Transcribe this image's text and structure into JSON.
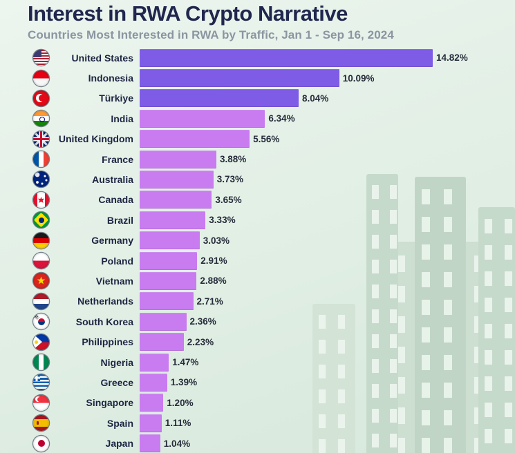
{
  "header": {
    "title": "Interest in RWA Crypto Narrative",
    "subtitle": "Countries Most Interested in RWA by Traffic, Jan 1 - Sep 16, 2024"
  },
  "chart_data": {
    "type": "bar",
    "orientation": "horizontal",
    "title": "Interest in RWA Crypto Narrative",
    "subtitle": "Countries Most Interested in RWA by Traffic, Jan 1 - Sep 16, 2024",
    "value_suffix": "%",
    "xlim": [
      0,
      15.5
    ],
    "grid": false,
    "legend": false,
    "highlight_top_n": 3,
    "colors": {
      "top_bar": "#7E5CE6",
      "bar": "#C87CF0",
      "title": "#20274E",
      "subtitle": "#8B95A1",
      "label": "#1C2442",
      "value": "#262C3A"
    },
    "rows": [
      {
        "country": "United States",
        "flag": "us",
        "value": 14.82,
        "label": "14.82%"
      },
      {
        "country": "Indonesia",
        "flag": "id",
        "value": 10.09,
        "label": "10.09%"
      },
      {
        "country": "Türkiye",
        "flag": "tr",
        "value": 8.04,
        "label": "8.04%"
      },
      {
        "country": "India",
        "flag": "in",
        "value": 6.34,
        "label": "6.34%"
      },
      {
        "country": "United Kingdom",
        "flag": "gb",
        "value": 5.56,
        "label": "5.56%"
      },
      {
        "country": "France",
        "flag": "fr",
        "value": 3.88,
        "label": "3.88%"
      },
      {
        "country": "Australia",
        "flag": "au",
        "value": 3.73,
        "label": "3.73%"
      },
      {
        "country": "Canada",
        "flag": "ca",
        "value": 3.65,
        "label": "3.65%"
      },
      {
        "country": "Brazil",
        "flag": "br",
        "value": 3.33,
        "label": "3.33%"
      },
      {
        "country": "Germany",
        "flag": "de",
        "value": 3.03,
        "label": "3.03%"
      },
      {
        "country": "Poland",
        "flag": "pl",
        "value": 2.91,
        "label": "2.91%"
      },
      {
        "country": "Vietnam",
        "flag": "vn",
        "value": 2.88,
        "label": "2.88%"
      },
      {
        "country": "Netherlands",
        "flag": "nl",
        "value": 2.71,
        "label": "2.71%"
      },
      {
        "country": "South Korea",
        "flag": "kr",
        "value": 2.36,
        "label": "2.36%"
      },
      {
        "country": "Philippines",
        "flag": "ph",
        "value": 2.23,
        "label": "2.23%"
      },
      {
        "country": "Nigeria",
        "flag": "ng",
        "value": 1.47,
        "label": "1.47%"
      },
      {
        "country": "Greece",
        "flag": "gr",
        "value": 1.39,
        "label": "1.39%"
      },
      {
        "country": "Singapore",
        "flag": "sg",
        "value": 1.2,
        "label": "1.20%"
      },
      {
        "country": "Spain",
        "flag": "es",
        "value": 1.11,
        "label": "1.11%"
      },
      {
        "country": "Japan",
        "flag": "jp",
        "value": 1.04,
        "label": "1.04%"
      }
    ]
  }
}
